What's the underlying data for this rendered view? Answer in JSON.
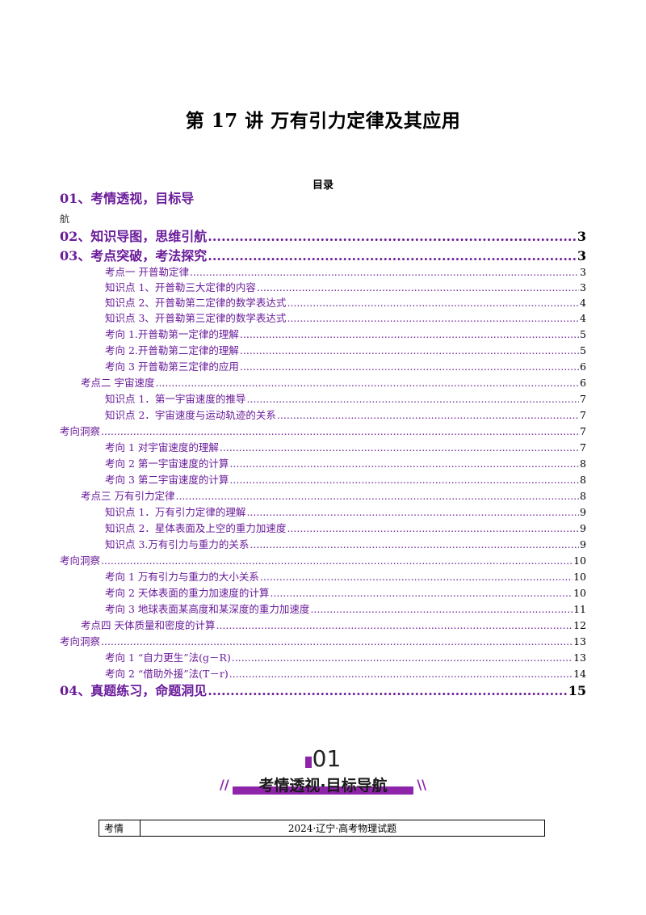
{
  "title": "第 17 讲  万有引力定律及其应用",
  "toc_heading": "目录",
  "toc_first": {
    "label": "01、考情透视，目标导",
    "wrap": "航"
  },
  "toc": [
    {
      "label": "02、知识导图，思维引航",
      "page": "3",
      "level": "main"
    },
    {
      "label": "03、考点突破，考法探究",
      "page": "3",
      "level": "main"
    },
    {
      "label": "考点一    开普勒定律",
      "page": "3",
      "level": "item"
    },
    {
      "label": "知识点 1、开普勒三大定律的内容",
      "page": "3",
      "level": "item"
    },
    {
      "label": "知识点 2、开普勒第二定律的数学表达式",
      "page": "4",
      "level": "item"
    },
    {
      "label": "知识点 3、开普勒第三定律的数学表达式",
      "page": "4",
      "level": "item"
    },
    {
      "label": "考向 1.开普勒第一定律的理解",
      "page": "5",
      "level": "item"
    },
    {
      "label": "考向 2.开普勒第二定律的理解",
      "page": "5",
      "level": "item"
    },
    {
      "label": "考向 3  开普勒第三定律的应用",
      "page": "6",
      "level": "item"
    },
    {
      "label": "考点二    宇宙速度",
      "page": "6",
      "level": "item"
    },
    {
      "label": "知识点 1．第一宇宙速度的推导",
      "page": "7",
      "level": "item"
    },
    {
      "label": "知识点 2．宇宙速度与运动轨迹的关系",
      "page": "7",
      "level": "item"
    },
    {
      "label": "考向洞察",
      "page": "7",
      "level": "item"
    },
    {
      "label": "考向 1  对宇宙速度的理解",
      "page": "7",
      "level": "item"
    },
    {
      "label": "考向 2  第一宇宙速度的计算",
      "page": "8",
      "level": "item"
    },
    {
      "label": "考向 3  第二宇宙速度的计算",
      "page": "8",
      "level": "item"
    },
    {
      "label": "考点三  万有引力定律",
      "page": "8",
      "level": "item"
    },
    {
      "label": "知识点 1．万有引力定律的理解",
      "page": "9",
      "level": "item"
    },
    {
      "label": "知识点 2．星体表面及上空的重力加速度",
      "page": "9",
      "level": "item"
    },
    {
      "label": "知识点 3.万有引力与重力的关系",
      "page": "9",
      "level": "item"
    },
    {
      "label": "考向洞察",
      "page": "10",
      "level": "item"
    },
    {
      "label": "考向 1    万有引力与重力的大小关系",
      "page": "10",
      "level": "item"
    },
    {
      "label": "考向 2    天体表面的重力加速度的计算",
      "page": "10",
      "level": "item"
    },
    {
      "label": "考向 3    地球表面某高度和某深度的重力加速度",
      "page": "11",
      "level": "item"
    },
    {
      "label": "考点四  天体质量和密度的计算",
      "page": "12",
      "level": "item"
    },
    {
      "label": "考向洞察",
      "page": "13",
      "level": "item"
    },
    {
      "label": "考向 1    “自力更生”法(g－R)",
      "page": "13",
      "level": "item"
    },
    {
      "label": "考向 2    “借助外援”法(T－r)",
      "page": "14",
      "level": "item"
    },
    {
      "label": "04、真题练习，命题洞见",
      "page": "15",
      "level": "main"
    }
  ],
  "section": {
    "number": "01",
    "title": "考情透视·目标导航"
  },
  "info_table": {
    "key": "考情",
    "value": "2024·辽宁·高考物理试题"
  }
}
